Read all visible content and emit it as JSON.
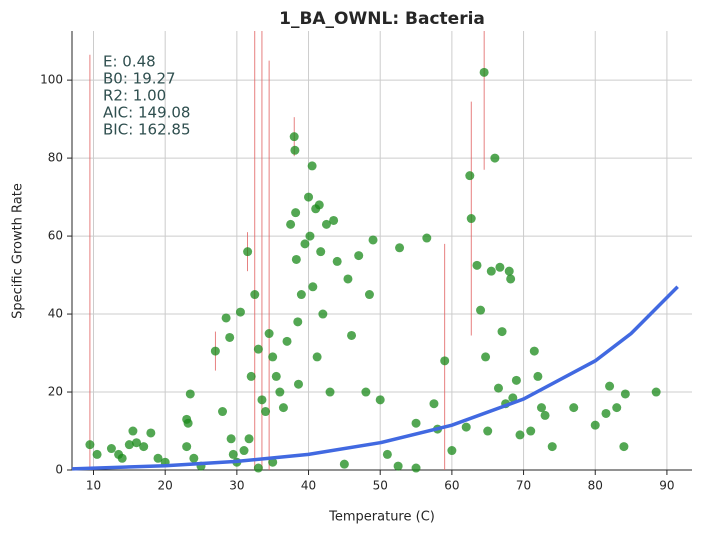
{
  "chart_data": {
    "type": "scatter",
    "title": "1_BA_OWNL: Bacteria",
    "x_label": "Temperature (C)",
    "y_label": "Specific Growth Rate",
    "annotations": [
      "E:  0.48",
      "B0:  19.27",
      "R2:  1.00",
      "AIC: 149.08",
      "BIC: 162.85"
    ],
    "xlim": [
      7,
      93.5
    ],
    "ylim": [
      0,
      112.6
    ],
    "xticks": [
      10,
      20,
      30,
      40,
      50,
      60,
      70,
      80,
      90
    ],
    "yticks": [
      0,
      20,
      40,
      60,
      80,
      100
    ],
    "grid": true,
    "series": [
      {
        "color": "#1a8a1a",
        "error_color": "#e06060",
        "x": [
          9.5,
          10.5,
          12.5,
          13.5,
          14,
          15,
          15.5,
          16,
          17,
          18,
          19,
          20,
          23,
          23.2,
          23.5,
          23,
          24,
          27,
          28,
          28.5,
          29,
          29.2,
          29.5,
          30.5,
          31,
          31.5,
          31.7,
          32,
          32.5,
          33,
          33.5,
          34,
          34.5,
          35,
          35.5,
          36,
          36.5,
          37,
          37.5,
          38,
          38.1,
          38.2,
          38.3,
          38.5,
          38.6,
          39,
          39.5,
          40,
          40.2,
          40.5,
          40.6,
          41,
          41.2,
          41.5,
          41.7,
          42,
          42.5,
          43,
          43.5,
          44,
          45.5,
          46,
          47,
          48,
          48.5,
          49,
          50,
          51,
          52.5,
          52.7,
          55,
          56.5,
          57.5,
          58,
          59,
          60,
          62,
          62.5,
          62.7,
          63.5,
          64,
          64.5,
          64.7,
          65,
          65.5,
          66,
          66.5,
          66.7,
          67,
          67.5,
          68,
          68.2,
          68.5,
          69,
          69.5,
          71,
          71.5,
          72,
          72.5,
          73,
          74,
          77,
          80,
          81.5,
          82,
          83,
          84,
          84.2,
          88.5,
          25,
          30,
          33,
          35,
          45,
          55
        ],
        "values": [
          6.5,
          4,
          5.5,
          4,
          3,
          6.5,
          10,
          7,
          6,
          9.5,
          3,
          2,
          13,
          12,
          19.5,
          6,
          3,
          30.5,
          15,
          39,
          34,
          8,
          4,
          40.5,
          5,
          56,
          8,
          24,
          45,
          31,
          18,
          15,
          35,
          29,
          24,
          20,
          16,
          33,
          63,
          85.5,
          82,
          66,
          54,
          38,
          22,
          45,
          58,
          70,
          60,
          78,
          47,
          67,
          29,
          68,
          56,
          40,
          63,
          20,
          64,
          53.5,
          49,
          34.5,
          55,
          20,
          45,
          59,
          18,
          4,
          1,
          57,
          12,
          59.5,
          17,
          10.5,
          28,
          5,
          11,
          75.5,
          64.5,
          52.5,
          41,
          102,
          29,
          10,
          51,
          80,
          21,
          52,
          35.5,
          17,
          51,
          49,
          18.5,
          23,
          9,
          10,
          30.5,
          24,
          16,
          14,
          6,
          16,
          11.5,
          14.5,
          21.5,
          16,
          6,
          19.5,
          20,
          1,
          2,
          0.5,
          2,
          1.5,
          0.5
        ],
        "errors": [
          100,
          null,
          null,
          null,
          null,
          null,
          null,
          null,
          null,
          null,
          null,
          null,
          null,
          null,
          null,
          null,
          null,
          5,
          null,
          null,
          null,
          null,
          null,
          null,
          null,
          5,
          null,
          null,
          70,
          null,
          95,
          null,
          70,
          null,
          null,
          null,
          null,
          null,
          null,
          5,
          null,
          null,
          null,
          null,
          null,
          null,
          null,
          null,
          null,
          null,
          null,
          null,
          null,
          null,
          null,
          null,
          null,
          null,
          null,
          null,
          null,
          null,
          null,
          null,
          null,
          null,
          null,
          null,
          null,
          null,
          null,
          null,
          null,
          null,
          30,
          null,
          null,
          null,
          30,
          null,
          null,
          25,
          null,
          null,
          null,
          null,
          null,
          null,
          null,
          null,
          null,
          null,
          null,
          null,
          null,
          null,
          null,
          null,
          null,
          null,
          null,
          null,
          null,
          null,
          null,
          null,
          null,
          null,
          null,
          null,
          null,
          null,
          null,
          null,
          null
        ]
      },
      {
        "type": "line",
        "color": "#4169e1",
        "x": [
          7,
          20,
          30,
          40,
          50,
          60,
          70,
          80,
          85,
          91.5
        ],
        "values": [
          0.3,
          1.1,
          2.2,
          4,
          7,
          11.5,
          18.2,
          28,
          35,
          47
        ]
      }
    ]
  }
}
